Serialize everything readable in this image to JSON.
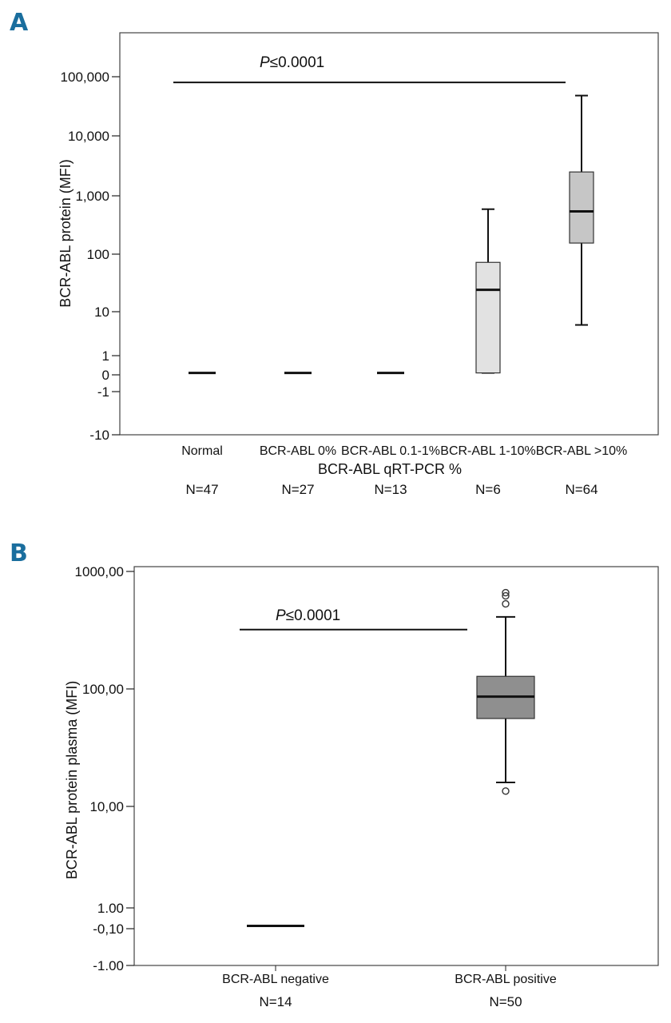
{
  "chart_data": [
    {
      "panel": "A",
      "type": "box",
      "scale": "log-like",
      "xlabel": "BCR-ABL qRT-PCR %",
      "ylabel": "BCR-ABL protein (MFI)",
      "yticks": [
        "100,000",
        "10,000",
        "1,000",
        "100",
        "10",
        "1",
        "0",
        "-1",
        "-10"
      ],
      "ytick_values": [
        100000,
        10000,
        1000,
        100,
        10,
        1,
        0,
        -1,
        -10
      ],
      "categories": [
        "Normal",
        "BCR-ABL 0%",
        "BCR-ABL 0.1-1%",
        "BCR-ABL 1-10%",
        "BCR-ABL >10%"
      ],
      "counts": [
        "N=47",
        "N=27",
        "N=13",
        "N=6",
        "N=64"
      ],
      "boxes": [
        {
          "category": "Normal",
          "min": 0.1,
          "q1": 0.1,
          "median": 0.1,
          "q3": 0.1,
          "max": 0.1
        },
        {
          "category": "BCR-ABL 0%",
          "min": 0.1,
          "q1": 0.1,
          "median": 0.1,
          "q3": 0.1,
          "max": 0.1
        },
        {
          "category": "BCR-ABL 0.1-1%",
          "min": 0.1,
          "q1": 0.1,
          "median": 0.1,
          "q3": 0.1,
          "max": 0.1
        },
        {
          "category": "BCR-ABL 1-10%",
          "min": 0.1,
          "q1": 0.1,
          "median": 24,
          "q3": 72,
          "max": 590,
          "color": "#e2e2e2"
        },
        {
          "category": "BCR-ABL >10%",
          "min": 5,
          "q1": 155,
          "median": 540,
          "q3": 2500,
          "max": 48000,
          "color": "#c6c6c6"
        }
      ],
      "annotation": {
        "prefix": "P",
        "text": "≤0.0001",
        "from": "Normal",
        "to": "BCR-ABL >10%",
        "y": 80000
      }
    },
    {
      "panel": "B",
      "type": "box",
      "scale": "log-like",
      "xlabel": "",
      "ylabel": "BCR-ABL protein plasma (MFI)",
      "yticks": [
        "1000,00",
        "100,00",
        "10,00",
        "1.00",
        "-0,10",
        "-1.00"
      ],
      "ytick_values": [
        1000,
        100,
        10,
        1,
        -0.1,
        -1
      ],
      "categories": [
        "BCR-ABL negative",
        "BCR-ABL positive"
      ],
      "counts": [
        "N=14",
        "N=50"
      ],
      "boxes": [
        {
          "category": "BCR-ABL negative",
          "min": 0.05,
          "q1": 0.05,
          "median": 0.05,
          "q3": 0.05,
          "max": 0.05
        },
        {
          "category": "BCR-ABL positive",
          "min": 16,
          "q1": 56,
          "median": 86,
          "q3": 128,
          "max": 410,
          "color": "#8f8f8f",
          "outliers": [
            660,
            620,
            530,
            13.5
          ]
        }
      ],
      "annotation": {
        "prefix": "P",
        "text": "≤0.0001",
        "from": "BCR-ABL negative",
        "to": "BCR-ABL positive",
        "y": 320
      }
    }
  ]
}
